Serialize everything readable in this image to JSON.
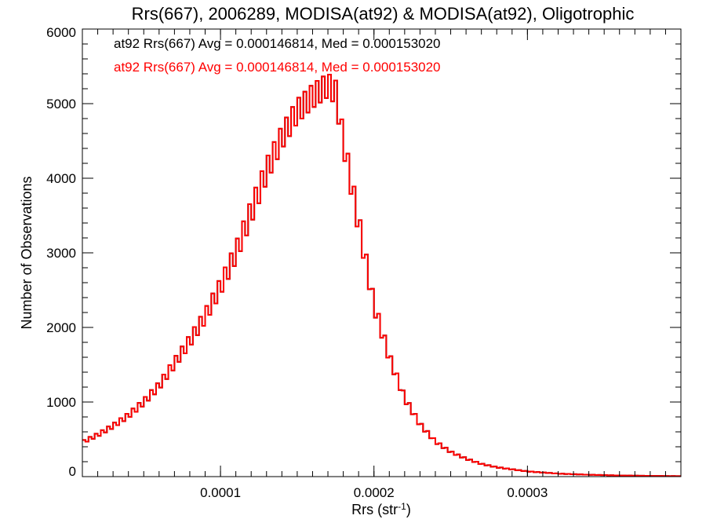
{
  "chart_data": {
    "type": "histogram",
    "title": "Rrs(667), 2006289, MODISA(at92) & MODISA(at92), Oligotrophic",
    "xlabel": "Rrs (str",
    "xlabel_superscript": "-1",
    "xlabel_suffix": ")",
    "ylabel": "Number of Observations",
    "xlim": [
      1e-05,
      0.0004
    ],
    "ylim": [
      0,
      6000
    ],
    "x_ticks": [
      {
        "value": 0.0001,
        "label": "0.0001"
      },
      {
        "value": 0.0002,
        "label": "0.0002"
      },
      {
        "value": 0.0003,
        "label": "0.0003"
      }
    ],
    "y_ticks": [
      {
        "value": 0,
        "label": "0"
      },
      {
        "value": 1000,
        "label": "1000"
      },
      {
        "value": 2000,
        "label": "2000"
      },
      {
        "value": 3000,
        "label": "3000"
      },
      {
        "value": 4000,
        "label": "4000"
      },
      {
        "value": 5000,
        "label": "5000"
      },
      {
        "value": 6000,
        "label": "6000"
      }
    ],
    "x_minor_step": 1e-05,
    "y_minor_step": 200,
    "bin_width": 2e-06,
    "legend": [
      {
        "text": "at92 Rrs(667) Avg = 0.000146814, Med = 0.000153020",
        "color": "#000000"
      },
      {
        "text": "at92 Rrs(667) Avg = 0.000146814, Med = 0.000153020",
        "color": "#ff0000"
      }
    ],
    "legend_position": "top-left",
    "series": [
      {
        "color": "#000000",
        "x": [
          1e-05,
          2e-05,
          3e-05,
          4e-05,
          5e-05,
          6e-05,
          7e-05,
          8e-05,
          9e-05,
          0.0001,
          0.00011,
          0.00012,
          0.00013,
          0.00014,
          0.00015,
          0.00016,
          0.00017,
          0.000175,
          0.00018,
          0.00019,
          0.0002,
          0.00021,
          0.00022,
          0.00023,
          0.00024,
          0.00025,
          0.00026,
          0.00027,
          0.00028,
          0.0003,
          0.00032,
          0.00034,
          0.00036,
          0.00038,
          0.0004
        ],
        "values": [
          460,
          560,
          680,
          820,
          1000,
          1220,
          1520,
          1820,
          2150,
          2550,
          3000,
          3550,
          4100,
          4550,
          4900,
          5100,
          5250,
          5150,
          4500,
          3400,
          2300,
          1600,
          1050,
          700,
          470,
          330,
          240,
          170,
          125,
          70,
          40,
          25,
          15,
          10,
          6
        ]
      },
      {
        "color": "#ff0000",
        "x": [
          1e-05,
          2e-05,
          3e-05,
          4e-05,
          5e-05,
          6e-05,
          7e-05,
          8e-05,
          9e-05,
          0.0001,
          0.00011,
          0.00012,
          0.00013,
          0.00014,
          0.00015,
          0.00016,
          0.00017,
          0.000175,
          0.00018,
          0.00019,
          0.0002,
          0.00021,
          0.00022,
          0.00023,
          0.00024,
          0.00025,
          0.00026,
          0.00027,
          0.00028,
          0.0003,
          0.00032,
          0.00034,
          0.00036,
          0.00038,
          0.0004
        ],
        "values": [
          460,
          560,
          680,
          820,
          1000,
          1220,
          1520,
          1820,
          2150,
          2550,
          3000,
          3550,
          4100,
          4550,
          4900,
          5100,
          5250,
          5150,
          4500,
          3400,
          2300,
          1600,
          1050,
          700,
          470,
          330,
          240,
          170,
          125,
          70,
          40,
          25,
          15,
          10,
          6
        ]
      }
    ]
  }
}
